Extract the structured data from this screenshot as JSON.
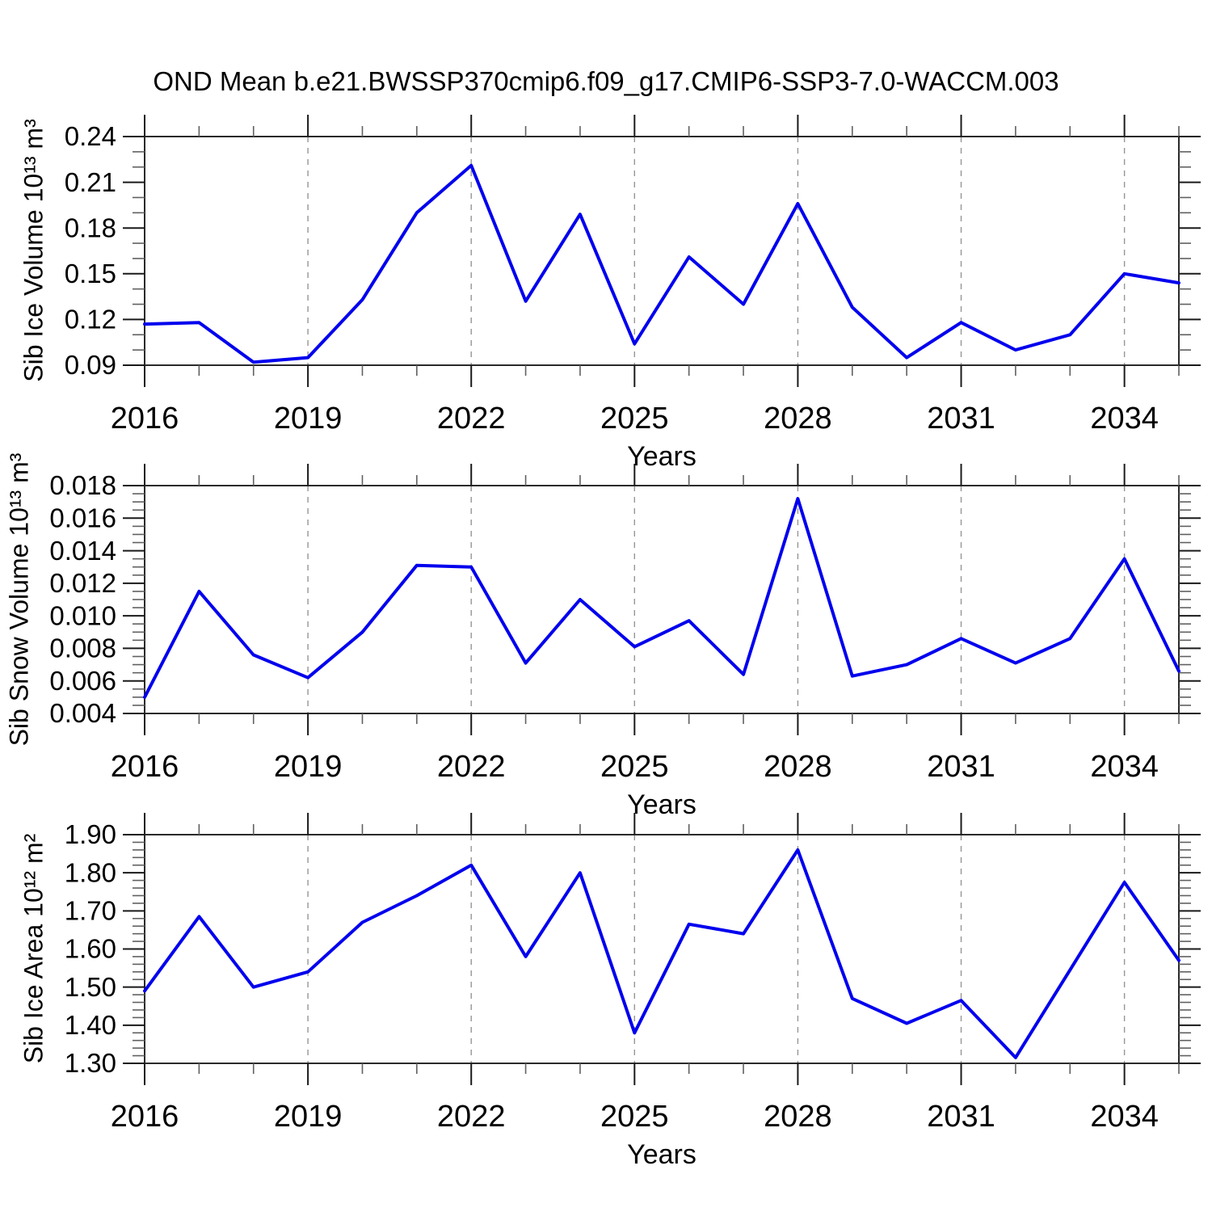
{
  "title": "OND Mean b.e21.BWSSP370cmip6.f09_g17.CMIP6-SSP3-7.0-WACCM.003",
  "colors": {
    "line": "#0000EE",
    "grid": "#969696",
    "frame": "#2a2a2a",
    "major_tick": "#1a1a1a",
    "minor_tick": "#606060",
    "text": "#000000"
  },
  "chart_data": [
    {
      "type": "line",
      "panel": "sib-ice-volume",
      "ylabel": "Sib Ice Volume 10¹³ m³",
      "xlabel": "Years",
      "x": [
        2016,
        2017,
        2018,
        2019,
        2020,
        2021,
        2022,
        2023,
        2024,
        2025,
        2026,
        2027,
        2028,
        2029,
        2030,
        2031,
        2032,
        2033,
        2034,
        2035
      ],
      "values": [
        0.117,
        0.118,
        0.092,
        0.095,
        0.133,
        0.19,
        0.221,
        0.132,
        0.189,
        0.104,
        0.161,
        0.13,
        0.196,
        0.128,
        0.095,
        0.118,
        0.1,
        0.11,
        0.15,
        0.144
      ],
      "ylim": [
        0.09,
        0.24
      ],
      "yticks": [
        0.09,
        0.12,
        0.15,
        0.18,
        0.21,
        0.24
      ],
      "ytick_labels": [
        "0.09",
        "0.12",
        "0.15",
        "0.18",
        "0.21",
        "0.24"
      ],
      "y_minor_step": 0.01,
      "xlim": [
        2016,
        2035
      ],
      "xticks": [
        2016,
        2019,
        2022,
        2025,
        2028,
        2031,
        2034
      ],
      "xtick_labels": [
        "2016",
        "2019",
        "2022",
        "2025",
        "2028",
        "2031",
        "2034"
      ],
      "grid_years": [
        2019,
        2022,
        2025,
        2028,
        2031,
        2034
      ],
      "grid": true,
      "legend": "none"
    },
    {
      "type": "line",
      "panel": "sib-snow-volume",
      "ylabel": "Sib Snow Volume 10¹³ m³",
      "xlabel": "Years",
      "x": [
        2016,
        2017,
        2018,
        2019,
        2020,
        2021,
        2022,
        2023,
        2024,
        2025,
        2026,
        2027,
        2028,
        2029,
        2030,
        2031,
        2032,
        2033,
        2034,
        2035
      ],
      "values": [
        0.005,
        0.0115,
        0.0076,
        0.0062,
        0.009,
        0.0131,
        0.013,
        0.0071,
        0.011,
        0.0081,
        0.0097,
        0.0064,
        0.0172,
        0.0063,
        0.007,
        0.0086,
        0.0071,
        0.0086,
        0.0135,
        0.0066
      ],
      "ylim": [
        0.004,
        0.018
      ],
      "yticks": [
        0.004,
        0.006,
        0.008,
        0.01,
        0.012,
        0.014,
        0.016,
        0.018
      ],
      "ytick_labels": [
        "0.004",
        "0.006",
        "0.008",
        "0.010",
        "0.012",
        "0.014",
        "0.016",
        "0.018"
      ],
      "y_minor_step": 0.0005,
      "xlim": [
        2016,
        2035
      ],
      "xticks": [
        2016,
        2019,
        2022,
        2025,
        2028,
        2031,
        2034
      ],
      "xtick_labels": [
        "2016",
        "2019",
        "2022",
        "2025",
        "2028",
        "2031",
        "2034"
      ],
      "grid_years": [
        2019,
        2022,
        2025,
        2028,
        2031,
        2034
      ],
      "grid": true,
      "legend": "none"
    },
    {
      "type": "line",
      "panel": "sib-ice-area",
      "ylabel": "Sib Ice Area 10¹² m²",
      "xlabel": "Years",
      "x": [
        2016,
        2017,
        2018,
        2019,
        2020,
        2021,
        2022,
        2023,
        2024,
        2025,
        2026,
        2027,
        2028,
        2029,
        2030,
        2031,
        2032,
        2033,
        2034,
        2035
      ],
      "values": [
        1.49,
        1.685,
        1.5,
        1.54,
        1.67,
        1.74,
        1.82,
        1.58,
        1.8,
        1.38,
        1.665,
        1.64,
        1.86,
        1.47,
        1.405,
        1.465,
        1.315,
        1.545,
        1.775,
        1.57
      ],
      "ylim": [
        1.3,
        1.9
      ],
      "yticks": [
        1.3,
        1.4,
        1.5,
        1.6,
        1.7,
        1.8,
        1.9
      ],
      "ytick_labels": [
        "1.30",
        "1.40",
        "1.50",
        "1.60",
        "1.70",
        "1.80",
        "1.90"
      ],
      "y_minor_step": 0.02,
      "xlim": [
        2016,
        2035
      ],
      "xticks": [
        2016,
        2019,
        2022,
        2025,
        2028,
        2031,
        2034
      ],
      "xtick_labels": [
        "2016",
        "2019",
        "2022",
        "2025",
        "2028",
        "2031",
        "2034"
      ],
      "grid_years": [
        2019,
        2022,
        2025,
        2028,
        2031,
        2034
      ],
      "grid": true,
      "legend": "none"
    }
  ]
}
